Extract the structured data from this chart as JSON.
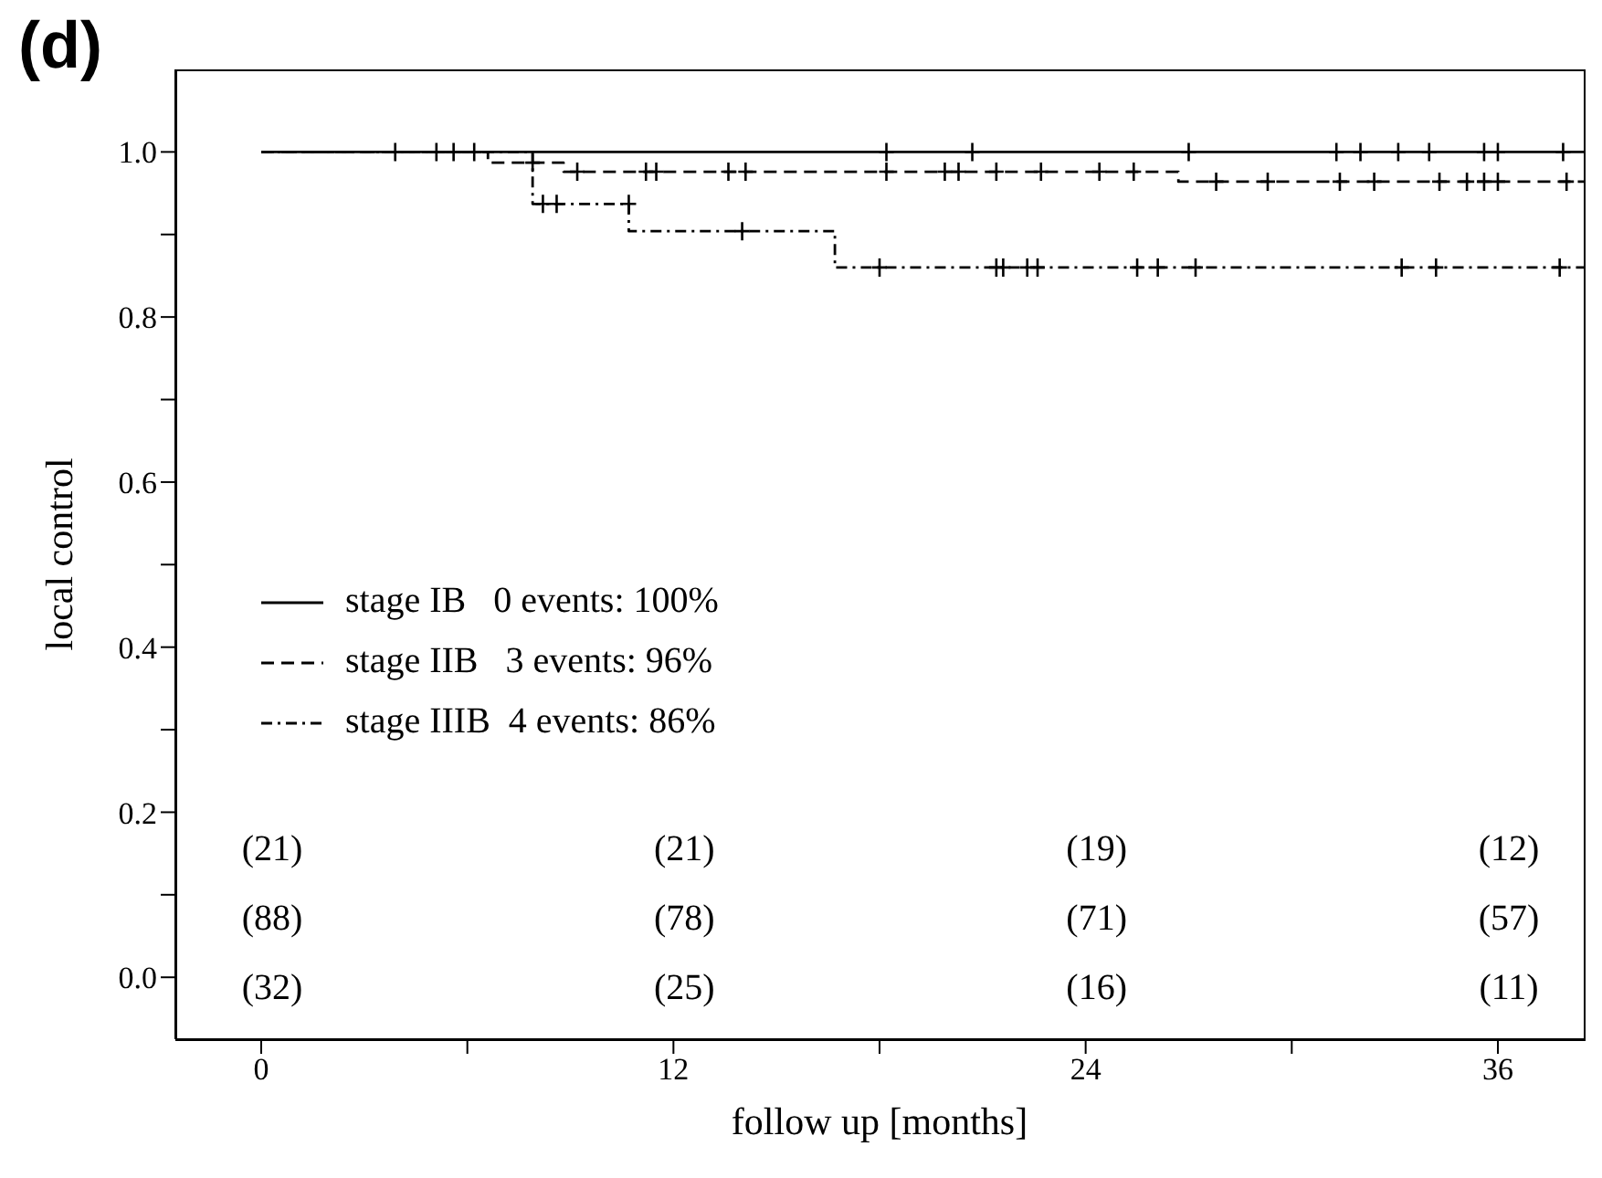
{
  "chart_data": {
    "type": "step",
    "title": "(d)",
    "xlabel": "follow up [months]",
    "ylabel": "local control",
    "xlim": [
      -2.5,
      38.5
    ],
    "xticks": [
      0,
      {
        "value": 6,
        "label": null
      },
      12,
      {
        "value": 18,
        "label": null
      },
      24,
      {
        "value": 30,
        "label": null
      },
      36
    ],
    "ylim": [
      -0.075,
      1.1
    ],
    "yticks": [
      {
        "value": 0,
        "label": "0.0"
      },
      {
        "value": 0.1,
        "label": null
      },
      0.2,
      {
        "value": 0.3,
        "label": null
      },
      0.4,
      {
        "value": 0.5,
        "label": null
      },
      0.6,
      {
        "value": 0.7,
        "label": null
      },
      0.8,
      {
        "value": 0.9,
        "label": null
      },
      {
        "value": 1,
        "label": "1.0"
      }
    ],
    "grid": false,
    "legend": "left",
    "marker": "none",
    "series": [
      {
        "name": "stage IB   0 events: 100%",
        "line_style": "solid",
        "color": "#000000",
        "x": [
          0,
          38.5
        ],
        "values": [
          1,
          1
        ]
      },
      {
        "name": "stage IIB   3 events: 96%",
        "line_style": "dashed",
        "color": "#000000",
        "x": [
          0,
          6.6,
          8.8,
          26.7,
          38.5
        ],
        "values": [
          1,
          0.987,
          0.976,
          0.964,
          0.964
        ]
      },
      {
        "name": "stage IIIB  4 events: 86%",
        "line_style": "dotted",
        "color": "#000000",
        "x": [
          0,
          7.9,
          10.7,
          16.7,
          38.5
        ],
        "values": [
          1,
          0.937,
          0.904,
          0.86,
          0.86
        ]
      },
      {
        "type": "scatter",
        "marker": "cross",
        "color": "#000000",
        "x": [
          3.9,
          5.1,
          5.6,
          6.2,
          18.2,
          20.7,
          27.0,
          31.3,
          32.0,
          33.1,
          34.0,
          35.6,
          36.0,
          37.9
        ],
        "values": [
          1,
          1,
          1,
          1,
          1,
          1,
          1,
          1,
          1,
          1,
          1,
          1,
          1,
          1
        ]
      },
      {
        "type": "scatter",
        "marker": "cross",
        "color": "#000000",
        "x": [
          7.9,
          9.2,
          11.2,
          11.5,
          13.6,
          14.1,
          18.2,
          19.9,
          20.3,
          21.4,
          22.7,
          24.4,
          25.4,
          27.8,
          29.3,
          31.4,
          32.4,
          34.3,
          35.1,
          35.6,
          36.0,
          38.0
        ],
        "values": [
          0.987,
          0.976,
          0.976,
          0.976,
          0.976,
          0.976,
          0.976,
          0.976,
          0.976,
          0.976,
          0.976,
          0.976,
          0.976,
          0.964,
          0.964,
          0.964,
          0.964,
          0.964,
          0.964,
          0.964,
          0.964,
          0.964
        ]
      },
      {
        "type": "scatter",
        "marker": "cross",
        "color": "#000000",
        "x": [
          8.2,
          8.6,
          10.7,
          14.0,
          18.0,
          21.4,
          21.6,
          22.3,
          22.6,
          25.5,
          26.1,
          27.2,
          33.2,
          34.2,
          37.8
        ],
        "values": [
          0.937,
          0.937,
          0.937,
          0.904,
          0.86,
          0.86,
          0.86,
          0.86,
          0.86,
          0.86,
          0.86,
          0.86,
          0.86,
          0.86,
          0.86
        ]
      }
    ],
    "annotations": [
      "(21)",
      "(21)",
      "(19)",
      "(12)",
      "(88)",
      "(78)",
      "(71)",
      "(57)",
      "(32)",
      "(25)",
      "(16)",
      "(11)"
    ]
  }
}
